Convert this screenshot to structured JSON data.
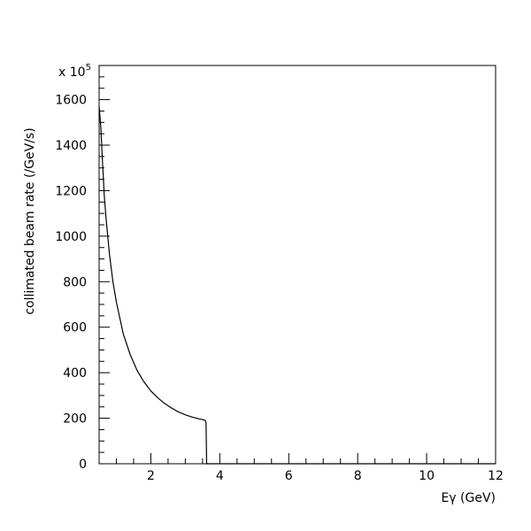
{
  "chart_data": {
    "type": "line",
    "xlabel": "Eγ (GeV)",
    "ylabel": "collimated beam rate (/GeV/s)",
    "scale_note": {
      "prefix": "x 10",
      "exponent": "5"
    },
    "xlim": [
      0.5,
      12
    ],
    "ylim": [
      0,
      1750
    ],
    "x_major_ticks": [
      2,
      4,
      6,
      8,
      10,
      12
    ],
    "x_tick_labels": [
      "2",
      "4",
      "6",
      "8",
      "10",
      "12"
    ],
    "x_minor_step": 0.5,
    "y_major_ticks": [
      0,
      200,
      400,
      600,
      800,
      1000,
      1200,
      1400,
      1600
    ],
    "y_tick_labels": [
      "0",
      "200",
      "400",
      "600",
      "800",
      "1000",
      "1200",
      "1400",
      "1600"
    ],
    "y_minor_step": 50,
    "grid": false,
    "series": [
      {
        "x": [
          0.5,
          0.55,
          0.6,
          0.65,
          0.7,
          0.8,
          0.9,
          1.0,
          1.2,
          1.4,
          1.6,
          1.8,
          2.0,
          2.2,
          2.4,
          2.6,
          2.8,
          3.0,
          3.2,
          3.4,
          3.55,
          3.58,
          3.6,
          3.62,
          3.66,
          4.0,
          6.0,
          8.0,
          10.0,
          12.0
        ],
        "y": [
          1570,
          1480,
          1320,
          1180,
          1080,
          920,
          800,
          710,
          570,
          480,
          410,
          360,
          320,
          290,
          265,
          245,
          228,
          215,
          205,
          197,
          192,
          190,
          180,
          0,
          0,
          0,
          0,
          0,
          0,
          0
        ]
      }
    ]
  }
}
